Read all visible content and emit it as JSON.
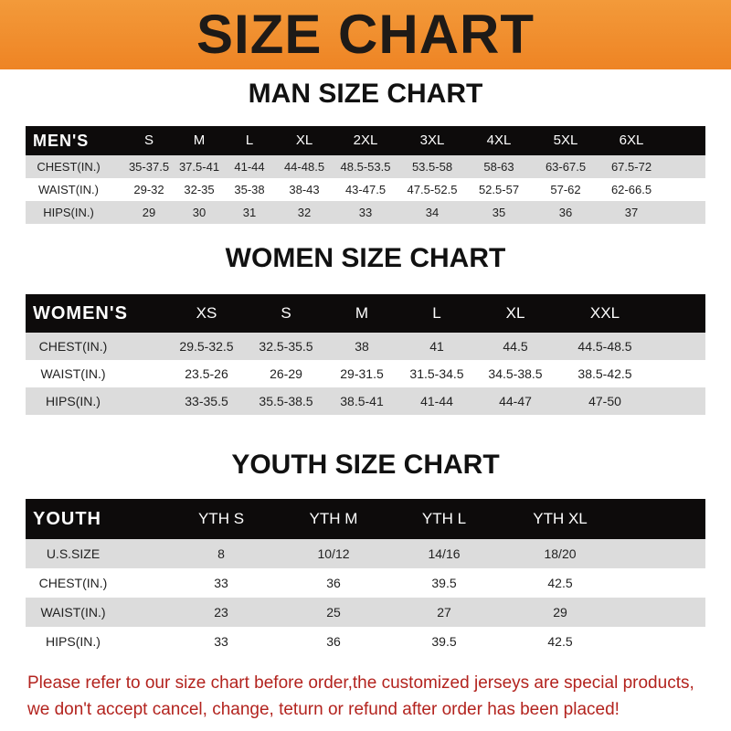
{
  "banner_title": "SIZE CHART",
  "men": {
    "title": "MAN SIZE CHART",
    "header": [
      "MEN'S",
      "S",
      "M",
      "L",
      "XL",
      "2XL",
      "3XL",
      "4XL",
      "5XL",
      "6XL"
    ],
    "rows": [
      [
        "CHEST(IN.)",
        "35-37.5",
        "37.5-41",
        "41-44",
        "44-48.5",
        "48.5-53.5",
        "53.5-58",
        "58-63",
        "63-67.5",
        "67.5-72"
      ],
      [
        "WAIST(IN.)",
        "29-32",
        "32-35",
        "35-38",
        "38-43",
        "43-47.5",
        "47.5-52.5",
        "52.5-57",
        "57-62",
        "62-66.5"
      ],
      [
        "HIPS(IN.)",
        "29",
        "30",
        "31",
        "32",
        "33",
        "34",
        "35",
        "36",
        "37"
      ]
    ]
  },
  "women": {
    "title": "WOMEN SIZE CHART",
    "header": [
      "WOMEN'S",
      "XS",
      "S",
      "M",
      "L",
      "XL",
      "XXL"
    ],
    "rows": [
      [
        "CHEST(IN.)",
        "29.5-32.5",
        "32.5-35.5",
        "38",
        "41",
        "44.5",
        "44.5-48.5"
      ],
      [
        "WAIST(IN.)",
        "23.5-26",
        "26-29",
        "29-31.5",
        "31.5-34.5",
        "34.5-38.5",
        "38.5-42.5"
      ],
      [
        "HIPS(IN.)",
        "33-35.5",
        "35.5-38.5",
        "38.5-41",
        "41-44",
        "44-47",
        "47-50"
      ]
    ]
  },
  "youth": {
    "title": "YOUTH SIZE CHART",
    "header": [
      "YOUTH",
      "YTH S",
      "YTH M",
      "YTH L",
      "YTH XL"
    ],
    "rows": [
      [
        "U.S.SIZE",
        "8",
        "10/12",
        "14/16",
        "18/20"
      ],
      [
        "CHEST(IN.)",
        "33",
        "36",
        "39.5",
        "42.5"
      ],
      [
        "WAIST(IN.)",
        "23",
        "25",
        "27",
        "29"
      ],
      [
        "HIPS(IN.)",
        "33",
        "36",
        "39.5",
        "42.5"
      ]
    ]
  },
  "footer": {
    "line1": "Please refer to our size chart before order,the customized jerseys are special products,",
    "line2": "we don't accept cancel, change, teturn or refund after order has been placed!"
  },
  "colors": {
    "banner": "#ef8a2a",
    "header_row": "#0d0b0b",
    "stripe": "#dcdcdc",
    "notice_text": "#b3231e"
  }
}
